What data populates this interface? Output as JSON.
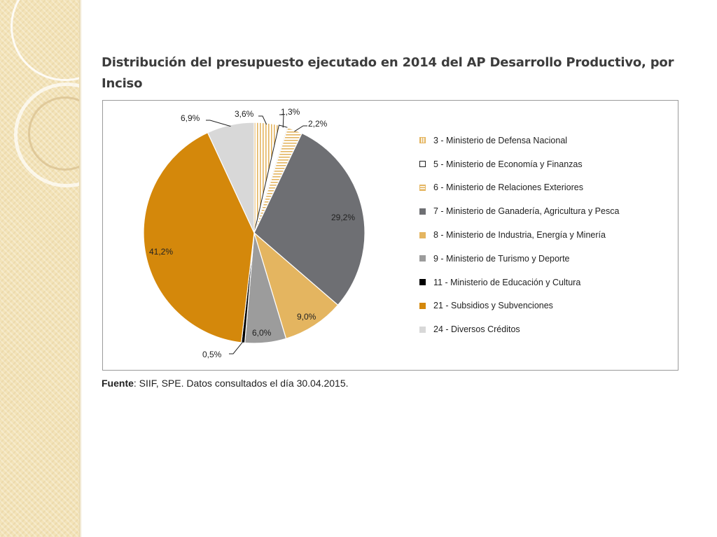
{
  "source": {
    "label": "Fuente",
    "text": ": SIIF, SPE. Datos consultados el día 30.04.2015."
  },
  "colors": {
    "panel": "#f3e3b8",
    "gold": "#d4880b",
    "light_gold": "#e4b560",
    "dark_gray": "#6e6f73",
    "mid_gray": "#9c9c9c",
    "light_gray": "#d8d8d8",
    "black": "#000000",
    "white": "#ffffff"
  },
  "chart_data": {
    "type": "pie",
    "title": "Distribución del presupuesto ejecutado en 2014 del AP Desarrollo Productivo, por Inciso",
    "legend_position": "right",
    "slices": [
      {
        "label": "3 - Ministerio de Defensa Nacional",
        "value": 3.6,
        "display": "3,6%",
        "fill": "vertical-stripes",
        "color": "#e4b560"
      },
      {
        "label": "5 - Ministerio de Economía y Finanzas",
        "value": 1.3,
        "display": "1,3%",
        "fill": "solid",
        "color": "#ffffff"
      },
      {
        "label": "6 - Ministerio de Relaciones Exteriores",
        "value": 2.2,
        "display": "2,2%",
        "fill": "horizontal-stripes",
        "color": "#e4b560"
      },
      {
        "label": "7 - Ministerio de Ganadería, Agricultura y Pesca",
        "value": 29.2,
        "display": "29,2%",
        "fill": "solid",
        "color": "#6e6f73"
      },
      {
        "label": "8 - Ministerio de Industria, Energía y Minería",
        "value": 9.0,
        "display": "9,0%",
        "fill": "solid",
        "color": "#e4b560"
      },
      {
        "label": "9 - Ministerio de Turismo y Deporte",
        "value": 6.0,
        "display": "6,0%",
        "fill": "solid",
        "color": "#9c9c9c"
      },
      {
        "label": "11 - Ministerio de Educación y Cultura",
        "value": 0.5,
        "display": "0,5%",
        "fill": "solid",
        "color": "#000000"
      },
      {
        "label": "21 - Subsidios y Subvenciones",
        "value": 41.2,
        "display": "41,2%",
        "fill": "solid",
        "color": "#d4880b"
      },
      {
        "label": "24 - Diversos Créditos",
        "value": 6.9,
        "display": "6,9%",
        "fill": "solid",
        "color": "#d8d8d8"
      }
    ]
  }
}
